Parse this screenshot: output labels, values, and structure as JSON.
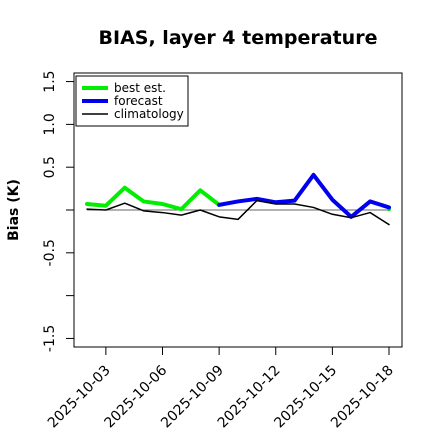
{
  "chart_data": {
    "type": "line",
    "title": "BIAS, layer 4 temperature",
    "ylabel": "Bias (K)",
    "xlabel": "",
    "ylim": [
      -1.6,
      1.6
    ],
    "yticks": [
      -1.5,
      -0.5,
      0.5,
      1.0,
      1.5
    ],
    "ytick_labels": [
      "-1.5",
      "-0.5",
      "0.5",
      "1.0",
      "1.5"
    ],
    "x": [
      "2025-10-02",
      "2025-10-03",
      "2025-10-04",
      "2025-10-05",
      "2025-10-06",
      "2025-10-07",
      "2025-10-08",
      "2025-10-09",
      "2025-10-10",
      "2025-10-11",
      "2025-10-12",
      "2025-10-13",
      "2025-10-14",
      "2025-10-15",
      "2025-10-16",
      "2025-10-17",
      "2025-10-18"
    ],
    "xticks": [
      "2025-10-03",
      "2025-10-06",
      "2025-10-09",
      "2025-10-12",
      "2025-10-15",
      "2025-10-18"
    ],
    "highlight_tick": "2025-10-09",
    "highlight_color": "#228b22",
    "reference_line": 0,
    "legend_position": "top-left",
    "series": [
      {
        "name": "best est.",
        "color": "#00ee00",
        "width": 4,
        "values": [
          0.07,
          0.05,
          0.26,
          0.1,
          0.07,
          0.01,
          0.23,
          0.06,
          null,
          null,
          null,
          null,
          null,
          null,
          null,
          null,
          0.01
        ]
      },
      {
        "name": "forecast",
        "color": "#0000ee",
        "width": 4,
        "values": [
          null,
          null,
          null,
          null,
          null,
          null,
          null,
          0.06,
          0.1,
          0.13,
          0.09,
          0.11,
          0.41,
          0.12,
          -0.08,
          0.1,
          0.03
        ]
      },
      {
        "name": "climatology",
        "color": "#000000",
        "width": 1.5,
        "values": [
          0.01,
          0.0,
          0.08,
          -0.01,
          -0.03,
          -0.06,
          0.0,
          -0.08,
          -0.11,
          0.11,
          0.07,
          0.07,
          0.03,
          -0.05,
          -0.09,
          -0.03,
          -0.17
        ]
      }
    ]
  }
}
